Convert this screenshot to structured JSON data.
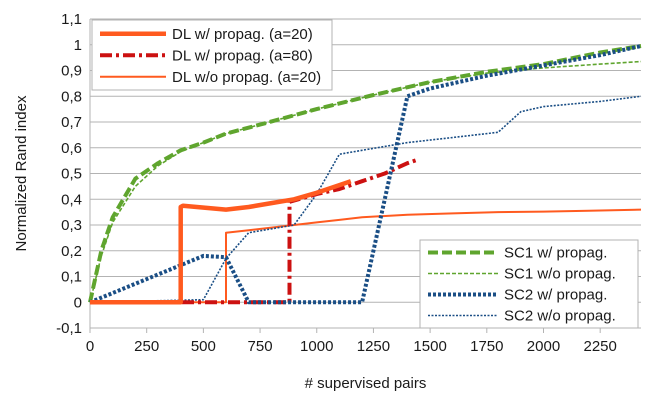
{
  "chart_data": {
    "type": "line",
    "title": "",
    "xlabel": "# supervised pairs",
    "ylabel": "Normalized Rand index",
    "xlim": [
      0,
      2430
    ],
    "ylim": [
      -0.1,
      1.1
    ],
    "x_ticks": [
      0,
      250,
      500,
      750,
      1000,
      1250,
      1500,
      1750,
      2000,
      2250
    ],
    "y_ticks": [
      -0.1,
      0,
      0.1,
      0.2,
      0.3,
      0.4,
      0.5,
      0.6,
      0.7,
      0.8,
      0.9,
      1,
      1.1
    ],
    "x_tick_labels": [
      "0",
      "250",
      "500",
      "750",
      "1000",
      "1250",
      "1500",
      "1750",
      "2000",
      "2250"
    ],
    "y_tick_labels": [
      "-0,1",
      "0",
      "0,1",
      "0,2",
      "0,3",
      "0,4",
      "0,5",
      "0,6",
      "0,7",
      "0,8",
      "0,9",
      "1",
      "1,1"
    ],
    "grid": true,
    "legends": [
      {
        "placement": "top-left",
        "series": [
          0,
          1,
          2
        ]
      },
      {
        "placement": "bottom-right",
        "series": [
          3,
          4,
          5,
          6
        ]
      }
    ],
    "series": [
      {
        "name": "DL w/ propag. (a=20)",
        "color": "#ff5a1f",
        "style": "solid-thick",
        "x": [
          0,
          400,
          400,
          410,
          600,
          700,
          800,
          900,
          1000,
          1100,
          1150
        ],
        "y": [
          0,
          0,
          0.37,
          0.375,
          0.36,
          0.37,
          0.385,
          0.4,
          0.425,
          0.455,
          0.47
        ]
      },
      {
        "name": "DL w/ propag. (a=80)",
        "color": "#cc1111",
        "style": "dashdot-thick",
        "x": [
          0,
          880,
          880,
          1000,
          1100,
          1200,
          1300,
          1400,
          1450
        ],
        "y": [
          0,
          0,
          0.39,
          0.42,
          0.44,
          0.47,
          0.5,
          0.54,
          0.555
        ]
      },
      {
        "name": "DL w/o propag. (a=20)",
        "color": "#ff5a1f",
        "style": "solid-thin",
        "x": [
          0,
          600,
          600,
          700,
          800,
          900,
          1000,
          1100,
          1200,
          1400,
          1600,
          1800,
          2000,
          2200,
          2430
        ],
        "y": [
          0,
          0,
          0.27,
          0.28,
          0.29,
          0.3,
          0.31,
          0.32,
          0.33,
          0.34,
          0.345,
          0.35,
          0.352,
          0.355,
          0.36
        ]
      },
      {
        "name": "SC1 w/ propag.",
        "color": "#5fa52e",
        "style": "dashed-thick",
        "x": [
          0,
          50,
          100,
          200,
          300,
          400,
          500,
          600,
          750,
          1000,
          1250,
          1500,
          1750,
          2000,
          2250,
          2430
        ],
        "y": [
          0,
          0.2,
          0.33,
          0.48,
          0.54,
          0.59,
          0.62,
          0.655,
          0.69,
          0.75,
          0.805,
          0.855,
          0.895,
          0.925,
          0.97,
          0.995
        ]
      },
      {
        "name": "SC1 w/o propag.",
        "color": "#5fa52e",
        "style": "dashed-thin",
        "x": [
          0,
          50,
          100,
          200,
          300,
          400,
          500,
          600,
          750,
          1000,
          1250,
          1500,
          1750,
          2000,
          2250,
          2430
        ],
        "y": [
          0,
          0.18,
          0.31,
          0.45,
          0.53,
          0.585,
          0.62,
          0.655,
          0.69,
          0.75,
          0.805,
          0.855,
          0.89,
          0.91,
          0.925,
          0.935
        ]
      },
      {
        "name": "SC2  w/ propag.",
        "color": "#1a4e85",
        "style": "dotted-thick",
        "x": [
          0,
          500,
          600,
          700,
          1200,
          1400,
          1500,
          1750,
          2000,
          2250,
          2430
        ],
        "y": [
          0,
          0.18,
          0.175,
          0,
          0,
          0.8,
          0.83,
          0.88,
          0.92,
          0.96,
          0.995
        ]
      },
      {
        "name": "SC2 w/o propag.",
        "color": "#1a4e85",
        "style": "dotted-thin",
        "x": [
          0,
          500,
          600,
          700,
          900,
          1000,
          1100,
          1200,
          1400,
          1600,
          1800,
          1900,
          2000,
          2250,
          2430
        ],
        "y": [
          0,
          0.01,
          0.17,
          0.27,
          0.3,
          0.42,
          0.575,
          0.59,
          0.62,
          0.64,
          0.66,
          0.74,
          0.76,
          0.78,
          0.8
        ]
      }
    ]
  }
}
